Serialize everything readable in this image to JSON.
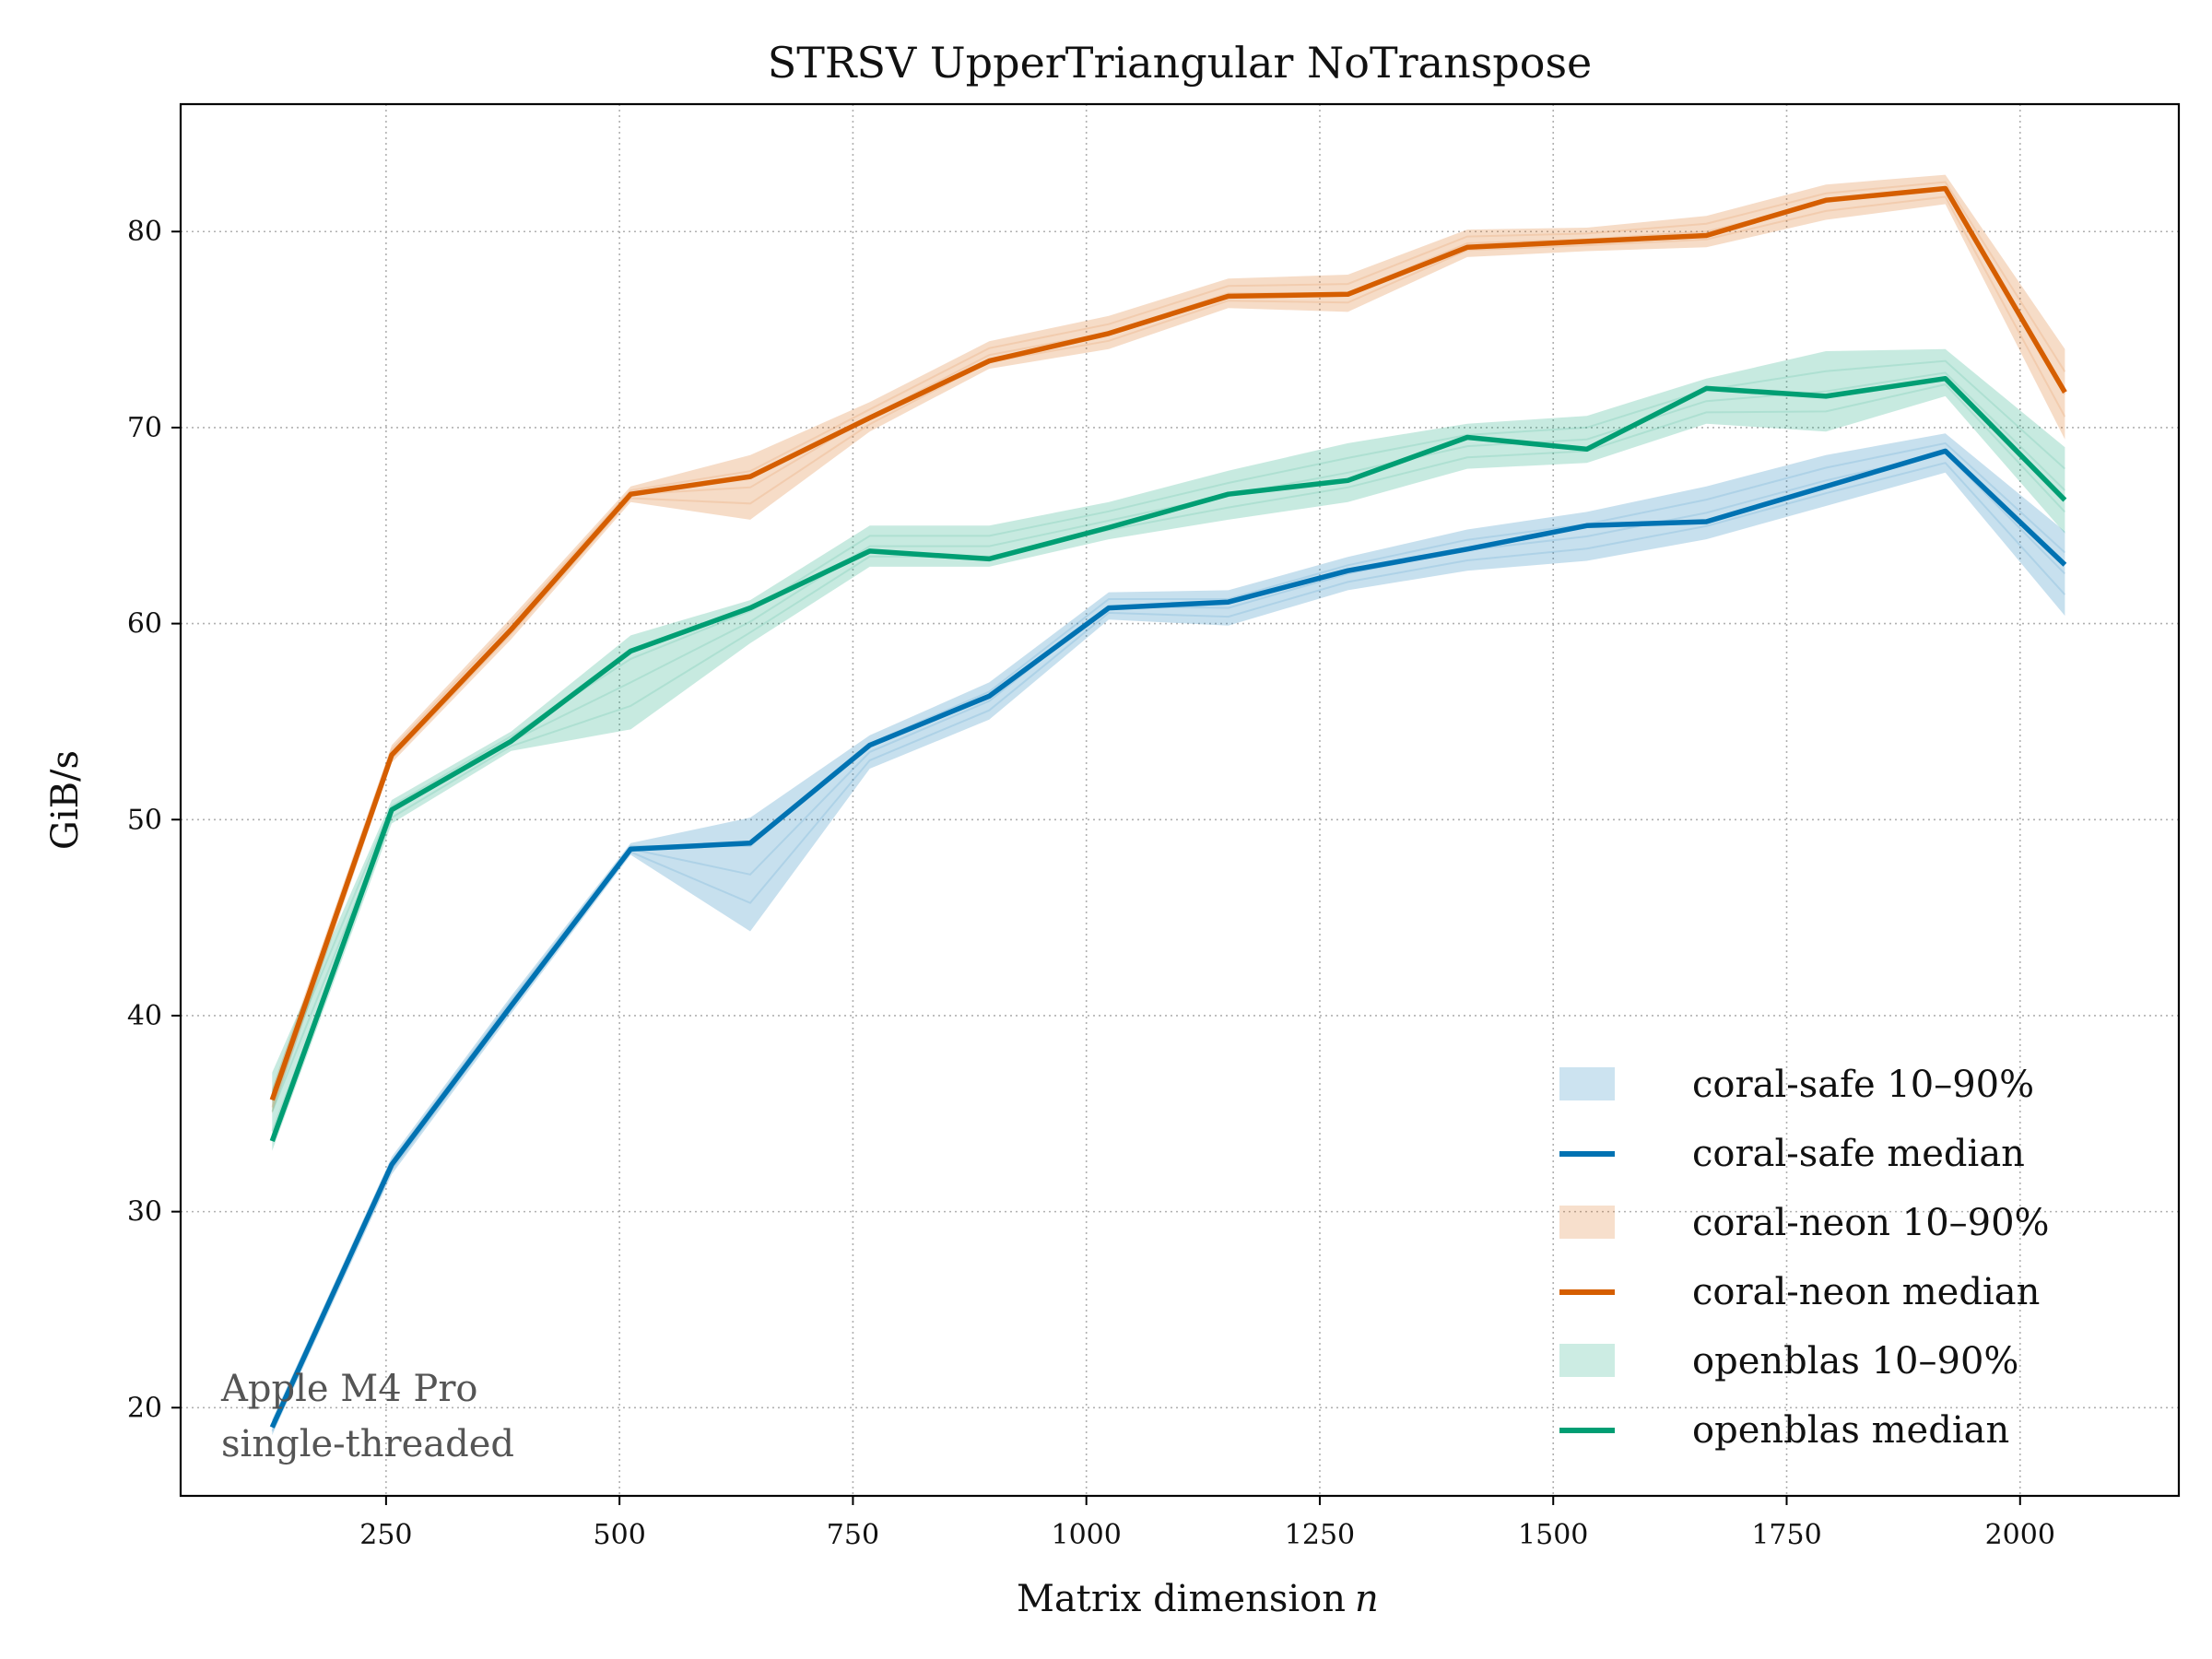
{
  "chart_data": {
    "type": "line",
    "title": "STRSV  UpperTriangular  NoTranspose",
    "xlabel": "Matrix dimension",
    "xlabel_var": "n",
    "ylabel": "GiB/s",
    "xlim": [
      30,
      2170
    ],
    "ylim": [
      15.5,
      86.5
    ],
    "xticks": [
      250,
      500,
      750,
      1000,
      1250,
      1500,
      1750,
      2000
    ],
    "yticks": [
      20,
      30,
      40,
      50,
      60,
      70,
      80
    ],
    "grid": true,
    "legend_position": "lower-right",
    "annotation": [
      "Apple M4 Pro",
      "single-threaded"
    ],
    "x": [
      128,
      256,
      384,
      512,
      640,
      768,
      896,
      1024,
      1152,
      1280,
      1408,
      1536,
      1664,
      1792,
      1920,
      2048
    ],
    "series": [
      {
        "name": "coral-safe",
        "color": "#0072B2",
        "band_label": "coral-safe 10–90%",
        "median_label": "coral-safe median",
        "median": [
          19.0,
          32.4,
          40.5,
          48.5,
          48.8,
          53.8,
          56.3,
          60.8,
          61.1,
          62.7,
          63.8,
          65.0,
          65.2,
          67.0,
          68.8,
          63.0
        ],
        "p10": [
          18.6,
          31.9,
          40.1,
          48.2,
          44.3,
          52.6,
          55.1,
          60.2,
          59.9,
          61.7,
          62.7,
          63.2,
          64.3,
          66.0,
          67.7,
          60.4
        ],
        "p90": [
          19.4,
          32.8,
          41.0,
          48.8,
          50.1,
          54.3,
          57.0,
          61.6,
          61.7,
          63.4,
          64.8,
          65.7,
          67.0,
          68.6,
          69.7,
          64.7
        ]
      },
      {
        "name": "coral-neon",
        "color": "#D55E00",
        "band_label": "coral-neon 10–90%",
        "median_label": "coral-neon median",
        "median": [
          35.7,
          53.3,
          59.7,
          66.6,
          67.5,
          70.5,
          73.4,
          74.8,
          76.7,
          76.8,
          79.2,
          79.5,
          79.8,
          81.6,
          82.2,
          71.8
        ],
        "p10": [
          35.0,
          52.9,
          59.2,
          66.2,
          65.3,
          69.8,
          73.0,
          74.0,
          76.1,
          75.9,
          78.7,
          79.0,
          79.2,
          80.6,
          81.4,
          69.4
        ],
        "p90": [
          36.3,
          53.8,
          60.3,
          67.0,
          68.6,
          71.3,
          74.4,
          75.7,
          77.6,
          77.8,
          80.1,
          80.2,
          80.8,
          82.4,
          82.9,
          74.0
        ]
      },
      {
        "name": "openblas",
        "color": "#009E73",
        "band_label": "openblas 10–90%",
        "median_label": "openblas median",
        "median": [
          33.6,
          50.5,
          54.0,
          58.6,
          60.8,
          63.7,
          63.3,
          64.9,
          66.6,
          67.3,
          69.5,
          68.9,
          72.0,
          71.6,
          72.5,
          66.3
        ],
        "p10": [
          33.1,
          49.8,
          53.5,
          54.6,
          59.0,
          62.9,
          62.9,
          64.3,
          65.3,
          66.2,
          67.9,
          68.2,
          70.2,
          69.8,
          71.6,
          64.6
        ],
        "p90": [
          37.1,
          51.0,
          54.5,
          59.4,
          61.2,
          65.0,
          65.0,
          66.2,
          67.8,
          69.2,
          70.2,
          70.6,
          72.5,
          73.9,
          74.0,
          69.0
        ]
      }
    ]
  }
}
